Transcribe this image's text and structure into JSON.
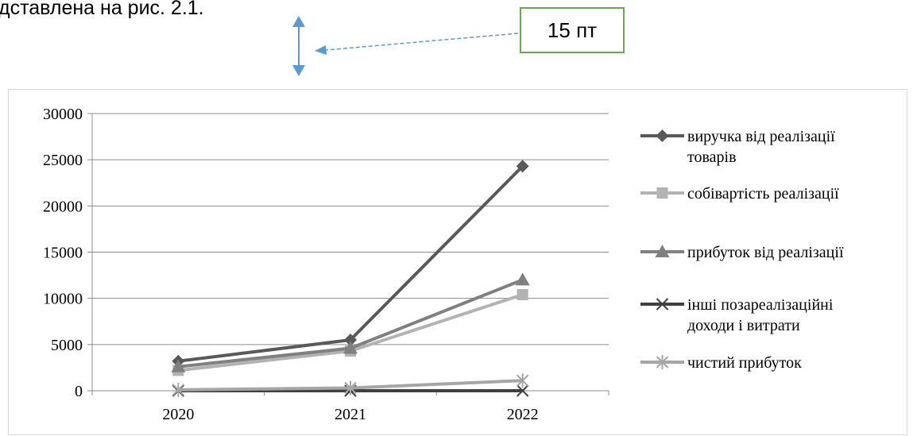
{
  "caption_fragment": "дставлена на рис. 2.1.",
  "annotation": {
    "label": "15 пт"
  },
  "colors": {
    "annotation_arrow": "#5b9bd5",
    "annotation_box_border": "#6aa84f"
  },
  "chart_data": {
    "type": "line",
    "categories": [
      "2020",
      "2021",
      "2022"
    ],
    "ylim": [
      0,
      30000
    ],
    "yticks": [
      0,
      5000,
      10000,
      15000,
      20000,
      25000,
      30000
    ],
    "grid": true,
    "legend_position": "right",
    "series": [
      {
        "name": "виручка від реалізації товарів",
        "legend_lines": [
          "виручка від реалізації",
          "товарів"
        ],
        "values": [
          3200,
          5500,
          24300
        ],
        "marker": "diamond",
        "color": "#595959"
      },
      {
        "name": "собівартість реалізації",
        "legend_lines": [
          "собівартість реалізації"
        ],
        "values": [
          2200,
          4300,
          10400
        ],
        "marker": "square",
        "color": "#b3b3b3"
      },
      {
        "name": "прибуток від реалізації",
        "legend_lines": [
          "прибуток від реалізації"
        ],
        "values": [
          2600,
          4600,
          12000
        ],
        "marker": "triangle",
        "color": "#808080"
      },
      {
        "name": "інші позареалізаційні доходи і витрати",
        "legend_lines": [
          "інші позареалізаційні",
          "доходи і витрати"
        ],
        "values": [
          0,
          0,
          0
        ],
        "marker": "x",
        "color": "#404040"
      },
      {
        "name": "чистий прибуток",
        "legend_lines": [
          "чистий прибуток"
        ],
        "values": [
          100,
          300,
          1100
        ],
        "marker": "star",
        "color": "#a6a6a6"
      }
    ]
  }
}
